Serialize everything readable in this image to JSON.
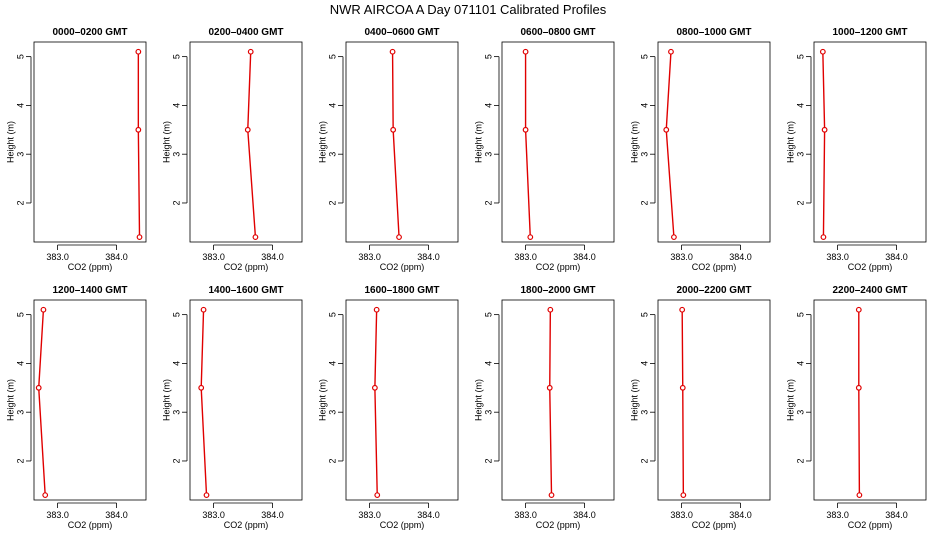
{
  "title": "NWR AIRCOA A  Day 071101  Calibrated Profiles",
  "colors": {
    "series": "#e00000",
    "axis": "#000000"
  },
  "chart_data": [
    {
      "type": "line",
      "title": "0000–0200 GMT",
      "xlabel": "CO2 (ppm)",
      "ylabel": "Height (m)",
      "xlim": [
        382.6,
        384.5
      ],
      "ylim": [
        1.2,
        5.3
      ],
      "xticks": [
        383.0,
        384.0
      ],
      "xtick_labels": [
        "383.0",
        "384.0"
      ],
      "yticks": [
        2,
        3,
        4,
        5
      ],
      "ytick_labels": [
        "2",
        "3",
        "4",
        "5"
      ],
      "x": [
        384.37,
        384.37,
        384.39
      ],
      "y": [
        5.1,
        3.5,
        1.3
      ]
    },
    {
      "type": "line",
      "title": "0200–0400 GMT",
      "xlabel": "CO2 (ppm)",
      "ylabel": "Height (m)",
      "xlim": [
        382.6,
        384.5
      ],
      "ylim": [
        1.2,
        5.3
      ],
      "xticks": [
        383.0,
        384.0
      ],
      "xtick_labels": [
        "383.0",
        "384.0"
      ],
      "yticks": [
        2,
        3,
        4,
        5
      ],
      "ytick_labels": [
        "2",
        "3",
        "4",
        "5"
      ],
      "x": [
        383.63,
        383.58,
        383.71
      ],
      "y": [
        5.1,
        3.5,
        1.3
      ]
    },
    {
      "type": "line",
      "title": "0400–0600 GMT",
      "xlabel": "CO2 (ppm)",
      "ylabel": "Height (m)",
      "xlim": [
        382.6,
        384.5
      ],
      "ylim": [
        1.2,
        5.3
      ],
      "xticks": [
        383.0,
        384.0
      ],
      "xtick_labels": [
        "383.0",
        "384.0"
      ],
      "yticks": [
        2,
        3,
        4,
        5
      ],
      "ytick_labels": [
        "2",
        "3",
        "4",
        "5"
      ],
      "x": [
        383.39,
        383.4,
        383.5
      ],
      "y": [
        5.1,
        3.5,
        1.3
      ]
    },
    {
      "type": "line",
      "title": "0600–0800 GMT",
      "xlabel": "CO2 (ppm)",
      "ylabel": "Height (m)",
      "xlim": [
        382.6,
        384.5
      ],
      "ylim": [
        1.2,
        5.3
      ],
      "xticks": [
        383.0,
        384.0
      ],
      "xtick_labels": [
        "383.0",
        "384.0"
      ],
      "yticks": [
        2,
        3,
        4,
        5
      ],
      "ytick_labels": [
        "2",
        "3",
        "4",
        "5"
      ],
      "x": [
        383.0,
        383.0,
        383.08
      ],
      "y": [
        5.1,
        3.5,
        1.3
      ]
    },
    {
      "type": "line",
      "title": "0800–1000 GMT",
      "xlabel": "CO2 (ppm)",
      "ylabel": "Height (m)",
      "xlim": [
        382.6,
        384.5
      ],
      "ylim": [
        1.2,
        5.3
      ],
      "xticks": [
        383.0,
        384.0
      ],
      "xtick_labels": [
        "383.0",
        "384.0"
      ],
      "yticks": [
        2,
        3,
        4,
        5
      ],
      "ytick_labels": [
        "2",
        "3",
        "4",
        "5"
      ],
      "x": [
        382.82,
        382.74,
        382.87
      ],
      "y": [
        5.1,
        3.5,
        1.3
      ]
    },
    {
      "type": "line",
      "title": "1000–1200 GMT",
      "xlabel": "CO2 (ppm)",
      "ylabel": "Height (m)",
      "xlim": [
        382.6,
        384.5
      ],
      "ylim": [
        1.2,
        5.3
      ],
      "xticks": [
        383.0,
        384.0
      ],
      "xtick_labels": [
        "383.0",
        "384.0"
      ],
      "yticks": [
        2,
        3,
        4,
        5
      ],
      "ytick_labels": [
        "2",
        "3",
        "4",
        "5"
      ],
      "x": [
        382.75,
        382.78,
        382.76
      ],
      "y": [
        5.1,
        3.5,
        1.3
      ]
    },
    {
      "type": "line",
      "title": "1200–1400 GMT",
      "xlabel": "CO2 (ppm)",
      "ylabel": "Height (m)",
      "xlim": [
        382.6,
        384.5
      ],
      "ylim": [
        1.2,
        5.3
      ],
      "xticks": [
        383.0,
        384.0
      ],
      "xtick_labels": [
        "383.0",
        "384.0"
      ],
      "yticks": [
        2,
        3,
        4,
        5
      ],
      "ytick_labels": [
        "2",
        "3",
        "4",
        "5"
      ],
      "x": [
        382.76,
        382.68,
        382.79
      ],
      "y": [
        5.1,
        3.5,
        1.3
      ]
    },
    {
      "type": "line",
      "title": "1400–1600 GMT",
      "xlabel": "CO2 (ppm)",
      "ylabel": "Height (m)",
      "xlim": [
        382.6,
        384.5
      ],
      "ylim": [
        1.2,
        5.3
      ],
      "xticks": [
        383.0,
        384.0
      ],
      "xtick_labels": [
        "383.0",
        "384.0"
      ],
      "yticks": [
        2,
        3,
        4,
        5
      ],
      "ytick_labels": [
        "2",
        "3",
        "4",
        "5"
      ],
      "x": [
        382.83,
        382.79,
        382.88
      ],
      "y": [
        5.1,
        3.5,
        1.3
      ]
    },
    {
      "type": "line",
      "title": "1600–1800 GMT",
      "xlabel": "CO2 (ppm)",
      "ylabel": "Height (m)",
      "xlim": [
        382.6,
        384.5
      ],
      "ylim": [
        1.2,
        5.3
      ],
      "xticks": [
        383.0,
        384.0
      ],
      "xtick_labels": [
        "383.0",
        "384.0"
      ],
      "yticks": [
        2,
        3,
        4,
        5
      ],
      "ytick_labels": [
        "2",
        "3",
        "4",
        "5"
      ],
      "x": [
        383.12,
        383.09,
        383.13
      ],
      "y": [
        5.1,
        3.5,
        1.3
      ]
    },
    {
      "type": "line",
      "title": "1800–2000 GMT",
      "xlabel": "CO2 (ppm)",
      "ylabel": "Height (m)",
      "xlim": [
        382.6,
        384.5
      ],
      "ylim": [
        1.2,
        5.3
      ],
      "xticks": [
        383.0,
        384.0
      ],
      "xtick_labels": [
        "383.0",
        "384.0"
      ],
      "yticks": [
        2,
        3,
        4,
        5
      ],
      "ytick_labels": [
        "2",
        "3",
        "4",
        "5"
      ],
      "x": [
        383.42,
        383.41,
        383.44
      ],
      "y": [
        5.1,
        3.5,
        1.3
      ]
    },
    {
      "type": "line",
      "title": "2000–2200 GMT",
      "xlabel": "CO2 (ppm)",
      "ylabel": "Height (m)",
      "xlim": [
        382.6,
        384.5
      ],
      "ylim": [
        1.2,
        5.3
      ],
      "xticks": [
        383.0,
        384.0
      ],
      "xtick_labels": [
        "383.0",
        "384.0"
      ],
      "yticks": [
        2,
        3,
        4,
        5
      ],
      "ytick_labels": [
        "2",
        "3",
        "4",
        "5"
      ],
      "x": [
        383.01,
        383.02,
        383.03
      ],
      "y": [
        5.1,
        3.5,
        1.3
      ]
    },
    {
      "type": "line",
      "title": "2200–2400 GMT",
      "xlabel": "CO2 (ppm)",
      "ylabel": "Height (m)",
      "xlim": [
        382.6,
        384.5
      ],
      "ylim": [
        1.2,
        5.3
      ],
      "xticks": [
        383.0,
        384.0
      ],
      "xtick_labels": [
        "383.0",
        "384.0"
      ],
      "yticks": [
        2,
        3,
        4,
        5
      ],
      "ytick_labels": [
        "2",
        "3",
        "4",
        "5"
      ],
      "x": [
        383.36,
        383.36,
        383.37
      ],
      "y": [
        5.1,
        3.5,
        1.3
      ]
    }
  ]
}
